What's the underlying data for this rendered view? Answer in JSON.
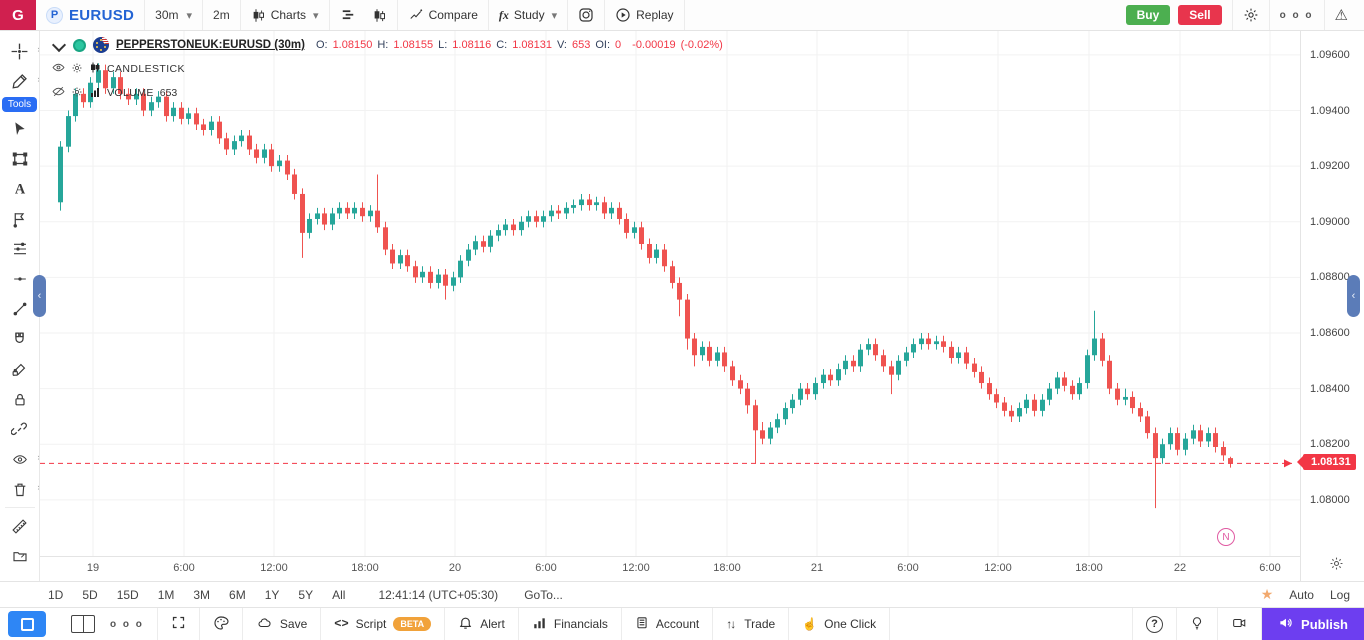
{
  "topbar": {
    "logo": "G",
    "symbol": "EURUSD",
    "interval": "30m",
    "quick_interval": "2m",
    "charts_label": "Charts",
    "compare_label": "Compare",
    "study_fx": "fx",
    "study_label": "Study",
    "replay_label": "Replay",
    "buy_label": "Buy",
    "sell_label": "Sell"
  },
  "sidebar": {
    "tools_badge": "Tools",
    "tools": [
      {
        "name": "crosshair",
        "chevron": true
      },
      {
        "name": "draw-pen",
        "chevron": true
      },
      {
        "name": "cursor",
        "chevron": false
      },
      {
        "name": "rectangle",
        "chevron": false
      },
      {
        "name": "text",
        "chevron": false
      },
      {
        "name": "annotation",
        "chevron": false
      },
      {
        "name": "fib-lines",
        "chevron": false
      },
      {
        "name": "horizontal-line",
        "chevron": false
      },
      {
        "name": "trend-line",
        "chevron": false
      },
      {
        "name": "magnet",
        "chevron": false
      },
      {
        "name": "draw-lock",
        "chevron": false
      },
      {
        "name": "lock",
        "chevron": false
      },
      {
        "name": "link",
        "chevron": false
      },
      {
        "name": "visibility",
        "chevron": true
      },
      {
        "name": "trash",
        "chevron": true
      },
      {
        "name": "ruler",
        "divider": true,
        "chevron": false
      },
      {
        "name": "object-tree",
        "chevron": false
      }
    ]
  },
  "legend": {
    "title": "PEPPERSTONEUK:EURUSD (30m)",
    "ohlc": [
      {
        "label": "O:",
        "value": "1.08150"
      },
      {
        "label": "H:",
        "value": "1.08155"
      },
      {
        "label": "L:",
        "value": "1.08116"
      },
      {
        "label": "C:",
        "value": "1.08131"
      },
      {
        "label": "V:",
        "value": "653"
      },
      {
        "label": "OI:",
        "value": "0"
      }
    ],
    "change": "-0.00019",
    "change_pct": "(-0.02%)",
    "study1_label": "CANDLESTICK",
    "study2_label": "VOLUME",
    "study2_value": "653"
  },
  "chart_data": {
    "type": "candlestick",
    "title": "PEPPERSTONEUK:EURUSD",
    "interval": "30m",
    "ohlc_display": {
      "open": 1.0815,
      "high": 1.08155,
      "low": 1.08116,
      "close": 1.08131,
      "volume": 653,
      "oi": 0,
      "change": -0.00019,
      "change_pct": "-0.02%"
    },
    "last_price": 1.08131,
    "ylim": [
      1.07798,
      1.09686
    ],
    "grid": true,
    "price_ticks": [
      1.096,
      1.094,
      1.092,
      1.09,
      1.088,
      1.086,
      1.084,
      1.082,
      1.08
    ],
    "time_ticks": [
      {
        "label": "19",
        "x": 53
      },
      {
        "label": "6:00",
        "x": 144
      },
      {
        "label": "12:00",
        "x": 234
      },
      {
        "label": "18:00",
        "x": 325
      },
      {
        "label": "20",
        "x": 415
      },
      {
        "label": "6:00",
        "x": 506
      },
      {
        "label": "12:00",
        "x": 596
      },
      {
        "label": "18:00",
        "x": 687
      },
      {
        "label": "21",
        "x": 777
      },
      {
        "label": "6:00",
        "x": 868
      },
      {
        "label": "12:00",
        "x": 958
      },
      {
        "label": "18:00",
        "x": 1049
      },
      {
        "label": "22",
        "x": 1140
      },
      {
        "label": "6:00",
        "x": 1230
      }
    ],
    "marker": {
      "label": "N",
      "x": 1186,
      "y": 506
    },
    "candles": [
      [
        1.0907,
        1.0929,
        1.0904,
        1.0927
      ],
      [
        1.0927,
        1.094,
        1.0925,
        1.0938
      ],
      [
        1.0938,
        1.0948,
        1.0936,
        1.0946
      ],
      [
        1.0946,
        1.0948,
        1.0941,
        1.0943
      ],
      [
        1.0943,
        1.0952,
        1.0941,
        1.095
      ],
      [
        1.095,
        1.0957,
        1.0948,
        1.09545
      ],
      [
        1.09545,
        1.09565,
        1.0946,
        1.0948
      ],
      [
        1.0948,
        1.0954,
        1.0946,
        1.0952
      ],
      [
        1.0952,
        1.0954,
        1.0944,
        1.0946
      ],
      [
        1.0946,
        1.0948,
        1.0942,
        1.0944
      ],
      [
        1.0944,
        1.0948,
        1.0942,
        1.0946
      ],
      [
        1.0946,
        1.0948,
        1.0938,
        1.094
      ],
      [
        1.094,
        1.0945,
        1.0938,
        1.0943
      ],
      [
        1.0943,
        1.0947,
        1.0941,
        1.0945
      ],
      [
        1.0945,
        1.0947,
        1.0936,
        1.0938
      ],
      [
        1.0938,
        1.0943,
        1.0936,
        1.0941
      ],
      [
        1.0941,
        1.0943,
        1.0935,
        1.0937
      ],
      [
        1.0937,
        1.0941,
        1.0935,
        1.0939
      ],
      [
        1.0939,
        1.0941,
        1.0933,
        1.0935
      ],
      [
        1.0935,
        1.0937,
        1.0931,
        1.0933
      ],
      [
        1.0933,
        1.0938,
        1.0931,
        1.0936
      ],
      [
        1.0936,
        1.0938,
        1.0928,
        1.093
      ],
      [
        1.093,
        1.0932,
        1.0924,
        1.0926
      ],
      [
        1.0926,
        1.0931,
        1.0924,
        1.0929
      ],
      [
        1.0929,
        1.0933,
        1.0927,
        1.0931
      ],
      [
        1.0931,
        1.0933,
        1.0924,
        1.0926
      ],
      [
        1.0926,
        1.0928,
        1.0921,
        1.0923
      ],
      [
        1.0923,
        1.0928,
        1.0921,
        1.0926
      ],
      [
        1.0926,
        1.0928,
        1.0918,
        1.092
      ],
      [
        1.092,
        1.0924,
        1.0918,
        1.0922
      ],
      [
        1.0922,
        1.0924,
        1.0915,
        1.0917
      ],
      [
        1.0917,
        1.0919,
        1.0908,
        1.091
      ],
      [
        1.091,
        1.0912,
        1.0887,
        1.0896
      ],
      [
        1.0896,
        1.0903,
        1.0894,
        1.0901
      ],
      [
        1.0901,
        1.0905,
        1.0899,
        1.0903
      ],
      [
        1.0903,
        1.0905,
        1.0897,
        1.0899
      ],
      [
        1.0899,
        1.0905,
        1.0897,
        1.0903
      ],
      [
        1.0903,
        1.0907,
        1.0901,
        1.0905
      ],
      [
        1.0905,
        1.0907,
        1.0901,
        1.0903
      ],
      [
        1.0903,
        1.0907,
        1.0901,
        1.0905
      ],
      [
        1.0905,
        1.0907,
        1.09,
        1.0902
      ],
      [
        1.0902,
        1.0906,
        1.09,
        1.0904
      ],
      [
        1.0904,
        1.0917,
        1.0896,
        1.0898
      ],
      [
        1.0898,
        1.09,
        1.0888,
        1.089
      ],
      [
        1.089,
        1.0892,
        1.0883,
        1.0885
      ],
      [
        1.0885,
        1.089,
        1.0883,
        1.0888
      ],
      [
        1.0888,
        1.089,
        1.0882,
        1.0884
      ],
      [
        1.0884,
        1.0886,
        1.0878,
        1.088
      ],
      [
        1.088,
        1.0884,
        1.0878,
        1.0882
      ],
      [
        1.0882,
        1.0884,
        1.0876,
        1.0878
      ],
      [
        1.0878,
        1.0883,
        1.0876,
        1.0881
      ],
      [
        1.0881,
        1.0883,
        1.0872,
        1.0877
      ],
      [
        1.0877,
        1.0882,
        1.0875,
        1.088
      ],
      [
        1.088,
        1.0888,
        1.0878,
        1.0886
      ],
      [
        1.0886,
        1.0892,
        1.0884,
        1.089
      ],
      [
        1.089,
        1.0895,
        1.0888,
        1.0893
      ],
      [
        1.0893,
        1.0895,
        1.0889,
        1.0891
      ],
      [
        1.0891,
        1.0897,
        1.0889,
        1.0895
      ],
      [
        1.0895,
        1.0899,
        1.0893,
        1.0897
      ],
      [
        1.0897,
        1.0901,
        1.0895,
        1.0899
      ],
      [
        1.0899,
        1.0901,
        1.0895,
        1.0897
      ],
      [
        1.0897,
        1.0902,
        1.0895,
        1.09
      ],
      [
        1.09,
        1.0904,
        1.0898,
        1.0902
      ],
      [
        1.0902,
        1.0904,
        1.0898,
        1.09
      ],
      [
        1.09,
        1.0904,
        1.0898,
        1.0902
      ],
      [
        1.0902,
        1.0906,
        1.09,
        1.0904
      ],
      [
        1.0904,
        1.0906,
        1.0901,
        1.0903
      ],
      [
        1.0903,
        1.0907,
        1.0901,
        1.0905
      ],
      [
        1.0905,
        1.0908,
        1.0903,
        1.0906
      ],
      [
        1.0906,
        1.091,
        1.0904,
        1.0908
      ],
      [
        1.0908,
        1.091,
        1.0904,
        1.0906
      ],
      [
        1.0906,
        1.0909,
        1.0904,
        1.0907
      ],
      [
        1.0907,
        1.0909,
        1.0901,
        1.0903
      ],
      [
        1.0903,
        1.0907,
        1.0901,
        1.0905
      ],
      [
        1.0905,
        1.0907,
        1.0899,
        1.0901
      ],
      [
        1.0901,
        1.0903,
        1.0894,
        1.0896
      ],
      [
        1.0896,
        1.09,
        1.0894,
        1.0898
      ],
      [
        1.0898,
        1.09,
        1.089,
        1.0892
      ],
      [
        1.0892,
        1.0894,
        1.0885,
        1.0887
      ],
      [
        1.0887,
        1.0892,
        1.0885,
        1.089
      ],
      [
        1.089,
        1.0892,
        1.0882,
        1.0884
      ],
      [
        1.0884,
        1.0886,
        1.0876,
        1.0878
      ],
      [
        1.0878,
        1.088,
        1.0866,
        1.0872
      ],
      [
        1.0872,
        1.0874,
        1.0854,
        1.0858
      ],
      [
        1.0858,
        1.086,
        1.0848,
        1.0852
      ],
      [
        1.0852,
        1.0857,
        1.085,
        1.0855
      ],
      [
        1.0855,
        1.0857,
        1.0848,
        1.085
      ],
      [
        1.085,
        1.0855,
        1.0848,
        1.0853
      ],
      [
        1.0853,
        1.0855,
        1.0846,
        1.0848
      ],
      [
        1.0848,
        1.085,
        1.0841,
        1.0843
      ],
      [
        1.0843,
        1.0845,
        1.0838,
        1.084
      ],
      [
        1.084,
        1.0842,
        1.0831,
        1.0834
      ],
      [
        1.0834,
        1.0836,
        1.0813,
        1.0825
      ],
      [
        1.0825,
        1.0828,
        1.082,
        1.0822
      ],
      [
        1.0822,
        1.0828,
        1.082,
        1.0826
      ],
      [
        1.0826,
        1.0831,
        1.0824,
        1.0829
      ],
      [
        1.0829,
        1.0835,
        1.0827,
        1.0833
      ],
      [
        1.0833,
        1.0838,
        1.0831,
        1.0836
      ],
      [
        1.0836,
        1.0842,
        1.0834,
        1.084
      ],
      [
        1.084,
        1.0842,
        1.0836,
        1.0838
      ],
      [
        1.0838,
        1.0844,
        1.0836,
        1.0842
      ],
      [
        1.0842,
        1.0847,
        1.084,
        1.0845
      ],
      [
        1.0845,
        1.0847,
        1.0841,
        1.0843
      ],
      [
        1.0843,
        1.0849,
        1.0841,
        1.0847
      ],
      [
        1.0847,
        1.0852,
        1.0845,
        1.085
      ],
      [
        1.085,
        1.0852,
        1.0846,
        1.0848
      ],
      [
        1.0848,
        1.0856,
        1.0846,
        1.0854
      ],
      [
        1.0854,
        1.0858,
        1.0852,
        1.0856
      ],
      [
        1.0856,
        1.0858,
        1.085,
        1.0852
      ],
      [
        1.0852,
        1.0854,
        1.0846,
        1.0848
      ],
      [
        1.0848,
        1.085,
        1.0838,
        1.0845
      ],
      [
        1.0845,
        1.0852,
        1.0843,
        1.085
      ],
      [
        1.085,
        1.0855,
        1.0848,
        1.0853
      ],
      [
        1.0853,
        1.0858,
        1.0851,
        1.0856
      ],
      [
        1.0856,
        1.086,
        1.0854,
        1.0858
      ],
      [
        1.0858,
        1.086,
        1.0854,
        1.0856
      ],
      [
        1.0856,
        1.0859,
        1.0854,
        1.0857
      ],
      [
        1.0857,
        1.0859,
        1.0853,
        1.0855
      ],
      [
        1.0855,
        1.0857,
        1.0849,
        1.0851
      ],
      [
        1.0851,
        1.0855,
        1.0849,
        1.0853
      ],
      [
        1.0853,
        1.0855,
        1.0847,
        1.0849
      ],
      [
        1.0849,
        1.0851,
        1.0844,
        1.0846
      ],
      [
        1.0846,
        1.0848,
        1.084,
        1.0842
      ],
      [
        1.0842,
        1.0844,
        1.0836,
        1.0838
      ],
      [
        1.0838,
        1.084,
        1.0833,
        1.0835
      ],
      [
        1.0835,
        1.0837,
        1.083,
        1.0832
      ],
      [
        1.0832,
        1.0834,
        1.0828,
        1.083
      ],
      [
        1.083,
        1.0835,
        1.0828,
        1.0833
      ],
      [
        1.0833,
        1.0838,
        1.0831,
        1.0836
      ],
      [
        1.0836,
        1.0838,
        1.083,
        1.0832
      ],
      [
        1.0832,
        1.0838,
        1.083,
        1.0836
      ],
      [
        1.0836,
        1.0842,
        1.0834,
        1.084
      ],
      [
        1.084,
        1.0846,
        1.0838,
        1.0844
      ],
      [
        1.0844,
        1.0846,
        1.0839,
        1.0841
      ],
      [
        1.0841,
        1.0843,
        1.0836,
        1.0838
      ],
      [
        1.0838,
        1.0844,
        1.0836,
        1.0842
      ],
      [
        1.0842,
        1.0854,
        1.084,
        1.0852
      ],
      [
        1.0852,
        1.0868,
        1.085,
        1.0858
      ],
      [
        1.0858,
        1.086,
        1.0848,
        1.085
      ],
      [
        1.085,
        1.0852,
        1.0838,
        1.084
      ],
      [
        1.084,
        1.0842,
        1.0834,
        1.0836
      ],
      [
        1.0836,
        1.084,
        1.0834,
        1.0837
      ],
      [
        1.0837,
        1.0839,
        1.0831,
        1.0833
      ],
      [
        1.0833,
        1.0835,
        1.0828,
        1.083
      ],
      [
        1.083,
        1.0832,
        1.0822,
        1.0824
      ],
      [
        1.0824,
        1.0826,
        1.0797,
        1.0815
      ],
      [
        1.0815,
        1.0822,
        1.0813,
        1.082
      ],
      [
        1.082,
        1.0826,
        1.0818,
        1.0824
      ],
      [
        1.0824,
        1.0826,
        1.0816,
        1.0818
      ],
      [
        1.0818,
        1.0824,
        1.0816,
        1.0822
      ],
      [
        1.0822,
        1.0827,
        1.082,
        1.0825
      ],
      [
        1.0825,
        1.0827,
        1.0819,
        1.0821
      ],
      [
        1.0821,
        1.0826,
        1.0819,
        1.0824
      ],
      [
        1.0824,
        1.0826,
        1.0817,
        1.0819
      ],
      [
        1.0819,
        1.0821,
        1.0814,
        1.0816
      ],
      [
        1.0815,
        1.08155,
        1.08116,
        1.08131
      ]
    ]
  },
  "price_axis": {
    "ticks": [
      "1.09600",
      "1.09400",
      "1.09200",
      "1.09000",
      "1.08800",
      "1.08600",
      "1.08400",
      "1.08200",
      "1.08000"
    ],
    "last_price_label": "1.08131"
  },
  "footer": {
    "ranges": [
      "1D",
      "5D",
      "15D",
      "1M",
      "3M",
      "6M",
      "1Y",
      "5Y",
      "All"
    ],
    "clock": "12:41:14 (UTC+05:30)",
    "goto_label": "GoTo...",
    "auto_label": "Auto",
    "log_label": "Log"
  },
  "bottombar": {
    "save_label": "Save",
    "script_label": "Script",
    "beta_label": "BETA",
    "alert_label": "Alert",
    "financials_label": "Financials",
    "account_label": "Account",
    "trade_label": "Trade",
    "one_click_label": "One Click",
    "publish_label": "Publish"
  },
  "colors": {
    "up": "#26a69a",
    "down": "#ef5350",
    "last_line": "#f23645",
    "accent": "#2464d4",
    "buy": "#4caf50",
    "sell": "#e8354d",
    "publish": "#6d3ef0",
    "grid": "#f2f2f2"
  }
}
